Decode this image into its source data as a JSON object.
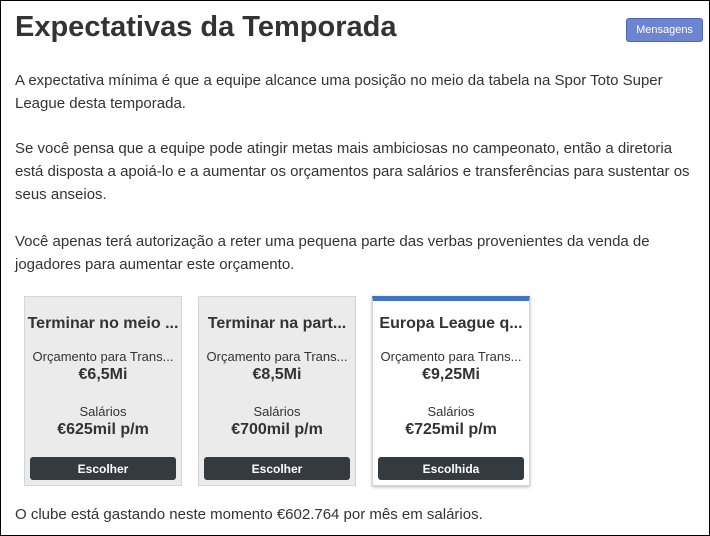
{
  "header": {
    "title": "Expectativas da Temporada",
    "button": "Mensagens"
  },
  "paragraphs": [
    "A expectativa mínima é que a equipe alcance uma posição no meio da tabela na Spor Toto Super League desta temporada.",
    "Se você pensa que a equipe pode atingir metas mais ambiciosas no campeonato, então a diretoria está disposta a apoiá-lo e a aumentar os orçamentos para salários e transferências para sustentar os seus anseios.",
    "Você apenas terá autorização a reter uma pequena parte das verbas provenientes da venda de jogadores para aumentar este orçamento."
  ],
  "cards": [
    {
      "title": "Terminar no meio ...",
      "transfer_label": "Orçamento para Trans...",
      "transfer": "€6,5Mi",
      "salary_label": "Salários",
      "salary": "€625mil p/m",
      "button": "Escolher"
    },
    {
      "title": "Terminar na part...",
      "transfer_label": "Orçamento para Trans...",
      "transfer": "€8,5Mi",
      "salary_label": "Salários",
      "salary": "€700mil p/m",
      "button": "Escolher"
    },
    {
      "title": "Europa League q...",
      "transfer_label": "Orçamento para Trans...",
      "transfer": "€9,25Mi",
      "salary_label": "Salários",
      "salary": "€725mil p/m",
      "button": "Escolhida"
    }
  ],
  "footer": "O clube está gastando neste momento €602.764 por mês em salários."
}
